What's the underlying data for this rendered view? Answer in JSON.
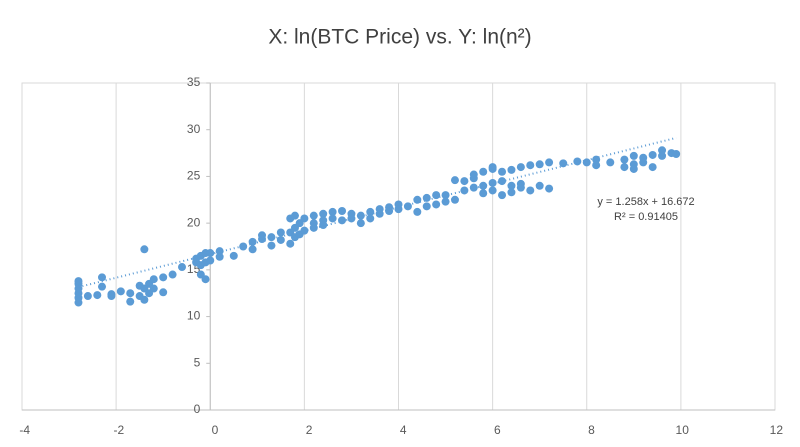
{
  "chart_data": {
    "type": "scatter",
    "title": "X: ln(BTC Price) vs. Y: ln(n²)",
    "x": [
      -2.8,
      -2.8,
      -2.8,
      -2.8,
      -2.8,
      -2.8,
      -2.6,
      -2.4,
      -2.3,
      -2.3,
      -2.1,
      -2.1,
      -1.9,
      -1.7,
      -1.7,
      -1.5,
      -1.5,
      -1.4,
      -1.4,
      -1.4,
      -1.3,
      -1.3,
      -1.2,
      -1.2,
      -1.0,
      -1.0,
      -0.8,
      -0.6,
      -0.3,
      -0.3,
      -0.2,
      -0.2,
      -0.2,
      -0.1,
      -0.1,
      -0.1,
      0.0,
      0.0,
      0.2,
      0.2,
      0.5,
      0.7,
      0.9,
      0.9,
      1.1,
      1.1,
      1.3,
      1.3,
      1.5,
      1.5,
      1.7,
      1.7,
      1.7,
      1.8,
      1.8,
      1.8,
      1.9,
      1.9,
      2.0,
      2.0,
      2.2,
      2.2,
      2.2,
      2.4,
      2.4,
      2.4,
      2.6,
      2.6,
      2.8,
      2.8,
      3.0,
      3.0,
      3.2,
      3.2,
      3.4,
      3.4,
      3.6,
      3.6,
      3.8,
      3.8,
      4.0,
      4.0,
      4.2,
      4.4,
      4.4,
      4.6,
      4.6,
      4.8,
      4.8,
      5.0,
      5.0,
      5.2,
      5.2,
      5.4,
      5.4,
      5.6,
      5.6,
      5.6,
      5.8,
      5.8,
      5.8,
      6.0,
      6.0,
      6.0,
      6.0,
      6.2,
      6.2,
      6.2,
      6.4,
      6.4,
      6.4,
      6.6,
      6.6,
      6.6,
      6.8,
      6.8,
      7.0,
      7.0,
      7.2,
      7.2,
      7.5,
      7.8,
      8.0,
      8.2,
      8.2,
      8.5,
      8.8,
      8.8,
      9.0,
      9.0,
      9.0,
      9.2,
      9.2,
      9.4,
      9.4,
      9.6,
      9.6,
      9.8,
      9.9
    ],
    "values": [
      11.5,
      12,
      12.5,
      13,
      13.5,
      13.8,
      12.2,
      12.3,
      14.2,
      13.2,
      12.2,
      12.4,
      12.7,
      12.5,
      11.6,
      12.2,
      13.3,
      17.2,
      11.8,
      13,
      12.5,
      13.5,
      14,
      13,
      12.6,
      14.2,
      14.5,
      15.3,
      15.8,
      16.2,
      16.5,
      15.5,
      14.5,
      16.8,
      15.8,
      14,
      16,
      16.8,
      17,
      16.4,
      16.5,
      17.5,
      18,
      17.2,
      18.3,
      18.7,
      18.5,
      17.6,
      19,
      18.2,
      20.5,
      19,
      17.8,
      20.8,
      19.5,
      18.5,
      20,
      18.8,
      20.5,
      19.2,
      20.8,
      20,
      19.5,
      21,
      20.3,
      19.8,
      21.2,
      20.5,
      21.3,
      20.3,
      21,
      20.5,
      20.8,
      20,
      21.2,
      20.5,
      21.5,
      21,
      21.7,
      21.3,
      22,
      21.5,
      21.8,
      21.2,
      22.5,
      22.7,
      21.8,
      22,
      23,
      22.3,
      23,
      24.6,
      22.5,
      24.5,
      23.5,
      24.8,
      23.8,
      25.2,
      25.5,
      24,
      23.2,
      25.8,
      24.3,
      23.5,
      26,
      25.5,
      24.5,
      23,
      25.7,
      24,
      23.3,
      26,
      24.2,
      23.8,
      26.2,
      23.5,
      26.3,
      24,
      26.5,
      23.7,
      26.4,
      26.6,
      26.5,
      26.2,
      26.8,
      26.5,
      26.8,
      26,
      27.2,
      26.3,
      25.8,
      27,
      26.5,
      27.3,
      26,
      27.8,
      27.2,
      27.5,
      27.4
    ],
    "color": "#5b9bd5",
    "trendline": {
      "slope": 1.258,
      "intercept": 16.672,
      "x_range": [
        -2.8,
        9.9
      ],
      "label": "y = 1.258x + 16.672",
      "r2_label": "R² = 0.91405"
    },
    "xlim": [
      -4,
      12
    ],
    "xticks": [
      -4,
      -2,
      0,
      2,
      4,
      6,
      8,
      10,
      12
    ],
    "ylim": [
      0,
      35
    ],
    "yticks": [
      0,
      5,
      10,
      15,
      20,
      25,
      30,
      35
    ],
    "grid": true
  }
}
